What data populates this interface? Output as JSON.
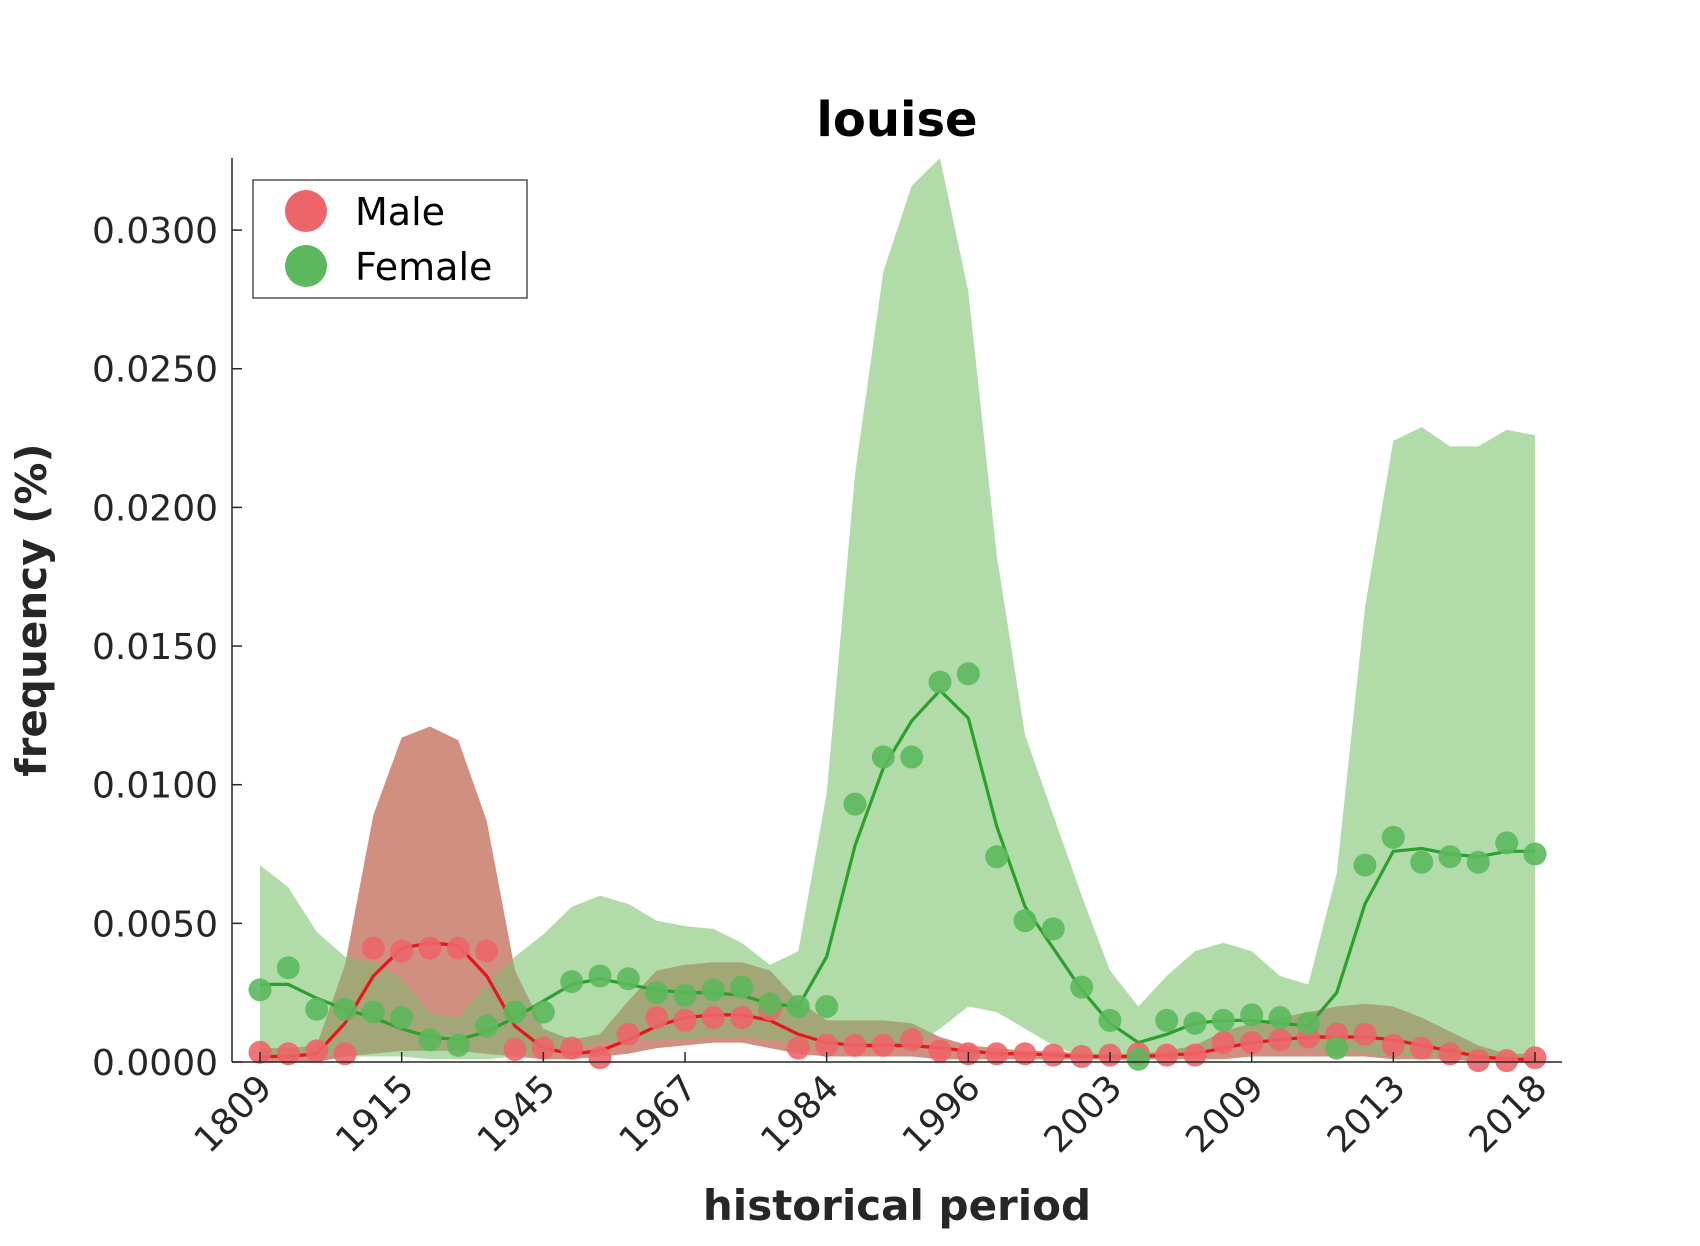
{
  "chart_data": {
    "type": "scatter",
    "title": "louise",
    "xlabel": "historical period",
    "ylabel": "frequency (%)",
    "ylim": [
      0,
      0.0326
    ],
    "yticks": [
      "0.0000",
      "0.0050",
      "0.0100",
      "0.0150",
      "0.0200",
      "0.0250",
      "0.0300"
    ],
    "ytick_values": [
      0,
      0.005,
      0.01,
      0.015,
      0.02,
      0.025,
      0.03
    ],
    "xtick_labels": [
      "1809",
      "1915",
      "1945",
      "1967",
      "1984",
      "1996",
      "2003",
      "2009",
      "2013",
      "2018"
    ],
    "xtick_index": [
      0,
      5,
      10,
      15,
      20,
      25,
      30,
      35,
      40,
      45
    ],
    "n_points": 46,
    "legend_position": "top-left",
    "grid": false,
    "series": [
      {
        "name": "Male",
        "color": "#e8151b",
        "marker_color": "#ec6669",
        "band_color": "#f4a3a5",
        "points": [
          0.00035,
          0.0003,
          0.0004,
          0.0003,
          0.0041,
          0.004,
          0.0041,
          0.0041,
          0.004,
          0.00045,
          0.0005,
          0.0005,
          0.00015,
          0.001,
          0.0016,
          0.0015,
          0.0016,
          0.0016,
          0.0019,
          0.0005,
          0.0006,
          0.0006,
          0.0006,
          0.0008,
          0.0004,
          0.0003,
          0.0003,
          0.0003,
          0.00025,
          0.0002,
          0.00025,
          0.0003,
          0.00025,
          0.00025,
          0.0007,
          0.0007,
          0.0008,
          0.0009,
          0.001,
          0.001,
          0.0006,
          0.0005,
          0.0003,
          5e-05,
          5e-05,
          0.00015
        ],
        "smooth": [
          0.0002,
          0.0002,
          0.0003,
          0.0014,
          0.0031,
          0.0041,
          0.0043,
          0.0042,
          0.0031,
          0.0013,
          0.0005,
          0.0003,
          0.0004,
          0.0008,
          0.0013,
          0.0016,
          0.0017,
          0.0017,
          0.0015,
          0.001,
          0.0007,
          0.0006,
          0.0006,
          0.0006,
          0.0005,
          0.0004,
          0.0003,
          0.0003,
          0.00025,
          0.0002,
          0.0002,
          0.0002,
          0.00025,
          0.0003,
          0.0005,
          0.0007,
          0.0008,
          0.0009,
          0.0009,
          0.0009,
          0.0008,
          0.0006,
          0.0004,
          0.0002,
          0.0001,
          0.0001
        ],
        "band_upper": [
          0.0005,
          0.0005,
          0.0006,
          0.0035,
          0.0089,
          0.0117,
          0.0121,
          0.0116,
          0.0087,
          0.0033,
          0.0012,
          0.0008,
          0.001,
          0.0022,
          0.0033,
          0.0035,
          0.0036,
          0.0036,
          0.0033,
          0.0022,
          0.0015,
          0.0015,
          0.0015,
          0.0014,
          0.0009,
          0.0006,
          0.0005,
          0.0004,
          0.0004,
          0.0003,
          0.0003,
          0.0003,
          0.0004,
          0.0006,
          0.0011,
          0.0014,
          0.0016,
          0.0018,
          0.002,
          0.0021,
          0.002,
          0.0016,
          0.0011,
          0.0006,
          0.0003,
          0.0003
        ],
        "band_lower": [
          0.0,
          0.0,
          0.0,
          0.0002,
          0.0003,
          0.0004,
          0.0004,
          0.0004,
          0.0003,
          0.0002,
          0.0001,
          0.0001,
          0.0002,
          0.0003,
          0.0005,
          0.0006,
          0.0007,
          0.0007,
          0.0005,
          0.0003,
          0.0002,
          0.0002,
          0.0002,
          0.0002,
          0.0001,
          0.0001,
          0.0001,
          0.0001,
          0.0001,
          0.0001,
          0.0001,
          0.0001,
          0.0001,
          0.0001,
          0.0001,
          0.0002,
          0.0002,
          0.0002,
          0.0002,
          0.0002,
          0.0001,
          0.0001,
          0.0001,
          0.0,
          0.0,
          0.0
        ]
      },
      {
        "name": "Female",
        "color": "#2ca02c",
        "marker_color": "#5cb85c",
        "band_color": "#a3d69b",
        "points": [
          0.0026,
          0.0034,
          0.0019,
          0.0019,
          0.0018,
          0.0016,
          0.0008,
          0.0006,
          0.0013,
          0.0018,
          0.0018,
          0.0029,
          0.0031,
          0.003,
          0.0025,
          0.0024,
          0.0026,
          0.0027,
          0.0021,
          0.002,
          0.002,
          0.0093,
          0.011,
          0.011,
          0.0137,
          0.014,
          0.0074,
          0.0051,
          0.0048,
          0.0027,
          0.0015,
          0.0001,
          0.0015,
          0.0014,
          0.0015,
          0.0017,
          0.0016,
          0.0014,
          0.0005,
          0.0071,
          0.0081,
          0.0072,
          0.0074,
          0.0072,
          0.0079,
          0.0075
        ],
        "smooth": [
          0.0028,
          0.0028,
          0.0023,
          0.0019,
          0.0016,
          0.0012,
          0.0009,
          0.0008,
          0.0011,
          0.0016,
          0.0022,
          0.0028,
          0.003,
          0.0028,
          0.0026,
          0.0025,
          0.0025,
          0.0024,
          0.0021,
          0.002,
          0.0038,
          0.0078,
          0.0106,
          0.0123,
          0.0134,
          0.0124,
          0.0085,
          0.0056,
          0.0041,
          0.0026,
          0.0014,
          0.0007,
          0.001,
          0.0014,
          0.0015,
          0.0015,
          0.0014,
          0.0013,
          0.0025,
          0.0057,
          0.0076,
          0.0077,
          0.0075,
          0.0074,
          0.0076,
          0.0076
        ],
        "band_upper": [
          0.0071,
          0.0063,
          0.0047,
          0.0038,
          0.0036,
          0.003,
          0.0018,
          0.0016,
          0.0028,
          0.0038,
          0.0046,
          0.0056,
          0.006,
          0.0057,
          0.0051,
          0.0049,
          0.0048,
          0.0043,
          0.0035,
          0.004,
          0.0097,
          0.0212,
          0.0285,
          0.0316,
          0.0326,
          0.0278,
          0.0183,
          0.0118,
          0.0089,
          0.006,
          0.0033,
          0.002,
          0.0031,
          0.004,
          0.0043,
          0.004,
          0.0031,
          0.0028,
          0.0068,
          0.0164,
          0.0224,
          0.0229,
          0.0222,
          0.0222,
          0.0228,
          0.0226
        ],
        "band_lower": [
          0.0002,
          0.0002,
          0.0002,
          0.0002,
          0.0002,
          0.0002,
          0.0001,
          0.0001,
          0.0001,
          0.0002,
          0.0003,
          0.0005,
          0.0007,
          0.0008,
          0.0008,
          0.0008,
          0.0009,
          0.0009,
          0.0008,
          0.0007,
          0.0005,
          0.0005,
          0.0005,
          0.0005,
          0.0012,
          0.002,
          0.0018,
          0.0012,
          0.0006,
          0.0002,
          0.0001,
          0.0,
          0.0002,
          0.0004,
          0.0006,
          0.0006,
          0.0006,
          0.0005,
          0.0004,
          0.0003,
          0.0002,
          0.0002,
          0.0002,
          0.0001,
          0.0001,
          0.0001
        ]
      }
    ]
  }
}
